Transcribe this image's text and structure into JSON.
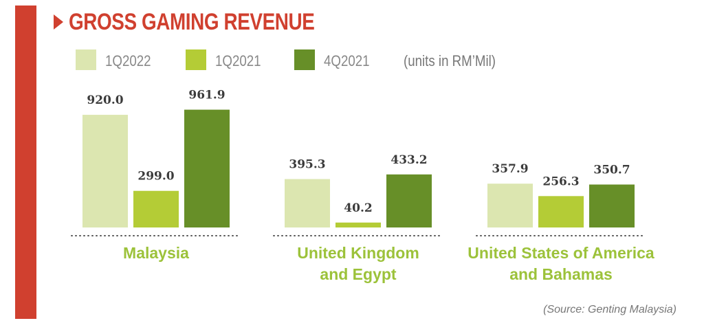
{
  "title": "GROSS GAMING REVENUE",
  "units": "(units in RM’Mil)",
  "source": "(Source: Genting Malaysia)",
  "colors": {
    "accent": "#d0402f",
    "category_label": "#9cc23a",
    "series": [
      "#dce6b0",
      "#b4cc36",
      "#678f28"
    ]
  },
  "legend": [
    "1Q2022",
    "1Q2021",
    "4Q2021"
  ],
  "chart_data": {
    "type": "bar",
    "title": "GROSS GAMING REVENUE",
    "categories": [
      [
        "Malaysia"
      ],
      [
        "United Kingdom",
        "and Egypt"
      ],
      [
        "United States of America",
        "and Bahamas"
      ]
    ],
    "series": [
      {
        "name": "1Q2022",
        "values": [
          920.0,
          395.3,
          357.9
        ],
        "labels": [
          "920.0",
          "395.3",
          "357.9"
        ]
      },
      {
        "name": "1Q2021",
        "values": [
          299.0,
          40.2,
          256.3
        ],
        "labels": [
          "299.0",
          "40.2",
          "256.3"
        ]
      },
      {
        "name": "4Q2021",
        "values": [
          961.9,
          433.2,
          350.7
        ],
        "labels": [
          "961.9",
          "433.2",
          "350.7"
        ]
      }
    ],
    "ylabel": "",
    "xlabel": "",
    "grid": false,
    "legend_position": "top"
  }
}
